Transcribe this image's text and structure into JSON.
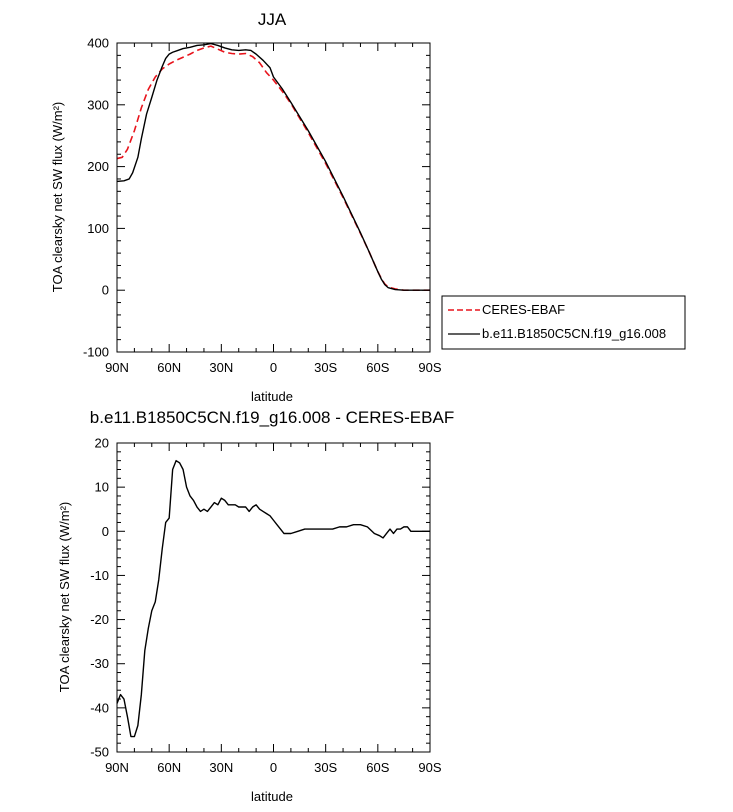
{
  "chart_data": [
    {
      "type": "line",
      "title": "JJA",
      "xlabel": "latitude",
      "ylabel": "TOA clearsky net SW flux (W/m²)",
      "xlim": [
        90,
        -90
      ],
      "ylim": [
        -100,
        400
      ],
      "x_tick_labels": [
        "90N",
        "60N",
        "30N",
        "0",
        "30S",
        "60S",
        "90S"
      ],
      "y_tick_labels": [
        "-100",
        "0",
        "100",
        "200",
        "300",
        "400"
      ],
      "legend": {
        "placement": "right",
        "entries": [
          "CERES-EBAF",
          "b.e11.B1850C5CN.f19_g16.008"
        ]
      },
      "series": [
        {
          "name": "CERES-EBAF",
          "color": "#e8141c",
          "dashed": true,
          "x": [
            90,
            87,
            84,
            80,
            76,
            72,
            68,
            64,
            60,
            56,
            52,
            48,
            44,
            40,
            36,
            32,
            28,
            24,
            20,
            16,
            12,
            8,
            4,
            0,
            -5,
            -10,
            -20,
            -30,
            -40,
            -50,
            -55,
            -60,
            -62,
            -64,
            -66,
            -70,
            -75,
            -80,
            -90
          ],
          "y": [
            213,
            215,
            228,
            258,
            295,
            325,
            345,
            358,
            366,
            372,
            377,
            382,
            388,
            392,
            395,
            390,
            385,
            383,
            382,
            383,
            378,
            368,
            352,
            340,
            322,
            302,
            255,
            205,
            150,
            92,
            62,
            30,
            19,
            10,
            5,
            2,
            0,
            0,
            0
          ]
        },
        {
          "name": "b.e11.B1850C5CN.f19_g16.008",
          "color": "#000000",
          "dashed": false,
          "x": [
            90,
            86,
            83,
            81,
            78,
            76,
            73,
            70,
            67,
            64,
            62,
            60,
            58,
            55,
            52,
            48,
            44,
            40,
            36,
            32,
            28,
            24,
            20,
            16,
            13,
            10,
            6,
            2,
            0,
            -5,
            -10,
            -20,
            -30,
            -40,
            -50,
            -55,
            -60,
            -62,
            -64,
            -66,
            -70,
            -75,
            -80,
            -90
          ],
          "y": [
            176,
            177,
            180,
            190,
            215,
            245,
            285,
            312,
            340,
            362,
            375,
            382,
            385,
            388,
            391,
            393,
            396,
            397,
            399,
            396,
            392,
            389,
            388,
            389,
            388,
            382,
            372,
            360,
            345,
            326,
            304,
            258,
            208,
            152,
            93,
            62,
            30,
            18,
            9,
            4,
            1,
            0,
            0,
            0
          ]
        }
      ]
    },
    {
      "type": "line",
      "title": "b.e11.B1850C5CN.f19_g16.008 - CERES-EBAF",
      "xlabel": "latitude",
      "ylabel": "TOA clearsky net SW flux (W/m²)",
      "xlim": [
        90,
        -90
      ],
      "ylim": [
        -50,
        20
      ],
      "x_tick_labels": [
        "90N",
        "60N",
        "30N",
        "0",
        "30S",
        "60S",
        "90S"
      ],
      "y_tick_labels": [
        "-50",
        "-40",
        "-30",
        "-20",
        "-10",
        "0",
        "10",
        "20"
      ],
      "series": [
        {
          "color": "#000000",
          "dashed": false,
          "x": [
            90,
            88,
            86,
            84,
            82,
            80,
            78,
            76,
            74,
            72,
            70,
            68,
            66,
            64,
            62,
            60,
            58,
            56,
            54,
            52,
            50,
            48,
            46,
            44,
            42,
            40,
            38,
            36,
            34,
            32,
            30,
            28,
            26,
            24,
            22,
            20,
            18,
            16,
            14,
            12,
            10,
            8,
            6,
            4,
            2,
            0,
            -2,
            -4,
            -6,
            -8,
            -10,
            -14,
            -18,
            -22,
            -26,
            -30,
            -34,
            -38,
            -42,
            -46,
            -50,
            -54,
            -58,
            -61,
            -63,
            -65,
            -67,
            -69,
            -71,
            -73,
            -75,
            -77,
            -79,
            -81,
            -84,
            -87,
            -90
          ],
          "y": [
            -39,
            -37,
            -38,
            -42,
            -46.5,
            -46.5,
            -44,
            -37,
            -27,
            -22,
            -18,
            -16,
            -11,
            -4,
            2,
            3,
            14,
            16,
            15.5,
            14,
            10,
            8,
            7,
            5.5,
            4.5,
            5,
            4.5,
            5.5,
            6.5,
            6,
            7.5,
            7,
            6,
            6,
            6,
            5.5,
            5.5,
            5.5,
            4.5,
            5.5,
            6,
            5,
            4.5,
            4,
            3.5,
            2.5,
            1.5,
            0.5,
            -0.5,
            -0.5,
            -0.5,
            0,
            0.5,
            0.5,
            0.5,
            0.5,
            0.5,
            1,
            1,
            1.5,
            1.5,
            1,
            -0.5,
            -1,
            -1.5,
            -0.5,
            0.5,
            -0.5,
            0.5,
            0.5,
            1,
            1,
            0,
            0,
            0,
            0,
            0
          ]
        }
      ]
    }
  ]
}
